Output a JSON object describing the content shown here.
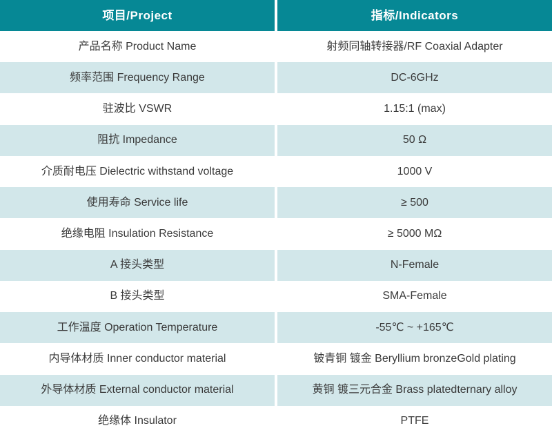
{
  "colors": {
    "header_bg": "#068895",
    "header_text": "#ffffff",
    "row_bg": "#ffffff",
    "row_alt_bg": "#d2e7ea",
    "text": "#3a3a3a"
  },
  "table": {
    "header": {
      "project": "项目/Project",
      "indicators": "指标/Indicators"
    },
    "rows": [
      {
        "project": "产品名称 Product Name",
        "indicator": "射频同轴转接器/RF Coaxial Adapter"
      },
      {
        "project": "频率范围 Frequency Range",
        "indicator": "DC-6GHz"
      },
      {
        "project": "驻波比 VSWR",
        "indicator": "1.15:1 (max)"
      },
      {
        "project": "阻抗 Impedance",
        "indicator": "50 Ω"
      },
      {
        "project": "介质耐电压 Dielectric withstand voltage",
        "indicator": "1000 V"
      },
      {
        "project": "使用寿命 Service life",
        "indicator": "≥ 500"
      },
      {
        "project": "绝缘电阻 Insulation Resistance",
        "indicator": "≥ 5000 MΩ"
      },
      {
        "project": "A 接头类型",
        "indicator": "N-Female"
      },
      {
        "project": "B 接头类型",
        "indicator": "SMA-Female"
      },
      {
        "project": "工作温度 Operation Temperature",
        "indicator": "-55℃ ~ +165℃"
      },
      {
        "project": "内导体材质 Inner conductor material",
        "indicator": "铍青铜 镀金 Beryllium bronzeGold plating"
      },
      {
        "project": "外导体材质 External conductor material",
        "indicator": "黄铜 镀三元合金 Brass platedternary alloy"
      },
      {
        "project": "绝缘体 Insulator",
        "indicator": "PTFE"
      }
    ]
  }
}
